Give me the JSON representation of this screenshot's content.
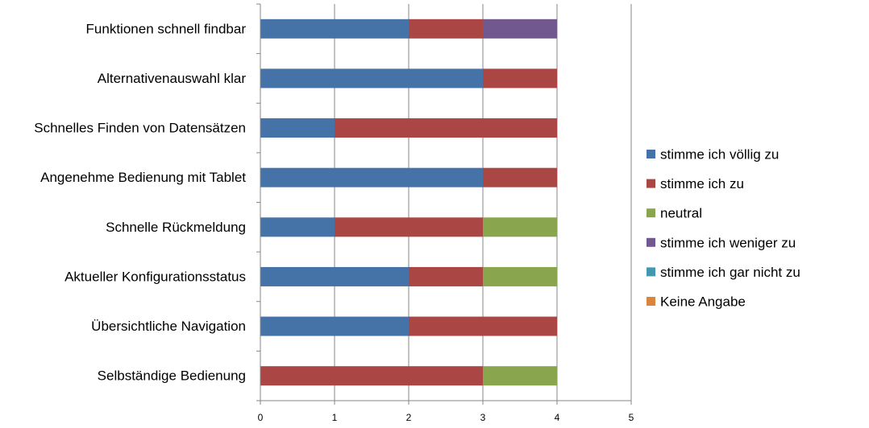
{
  "chart_data": {
    "type": "bar",
    "orientation": "horizontal",
    "stacked": true,
    "categories": [
      "Funktionen schnell findbar",
      "Alternativenauswahl klar",
      "Schnelles Finden von Datensätzen",
      "Angenehme Bedienung mit Tablet",
      "Schnelle Rückmeldung",
      "Aktueller Konfigurationsstatus",
      "Übersichtliche Navigation",
      "Selbständige Bedienung"
    ],
    "series": [
      {
        "name": "stimme ich völlig zu",
        "color": "#4572A7",
        "values": [
          2,
          3,
          1,
          3,
          1,
          2,
          2,
          0
        ]
      },
      {
        "name": "stimme ich zu",
        "color": "#AA4643",
        "values": [
          1,
          1,
          3,
          1,
          2,
          1,
          2,
          3
        ]
      },
      {
        "name": "neutral",
        "color": "#89A54E",
        "values": [
          0,
          0,
          0,
          0,
          1,
          1,
          0,
          1
        ]
      },
      {
        "name": "stimme ich weniger zu",
        "color": "#71588F",
        "values": [
          1,
          0,
          0,
          0,
          0,
          0,
          0,
          0
        ]
      },
      {
        "name": "stimme ich gar nicht zu",
        "color": "#4198AF",
        "values": [
          0,
          0,
          0,
          0,
          0,
          0,
          0,
          0
        ]
      },
      {
        "name": "Keine Angabe",
        "color": "#DB843D",
        "values": [
          0,
          0,
          0,
          0,
          0,
          0,
          0,
          0
        ]
      }
    ],
    "x_ticks": [
      "0",
      "1",
      "2",
      "3",
      "4",
      "5"
    ],
    "xlim": [
      0,
      5
    ],
    "title": "",
    "xlabel": "",
    "ylabel": "",
    "grid": "vertical",
    "legend_position": "right"
  }
}
